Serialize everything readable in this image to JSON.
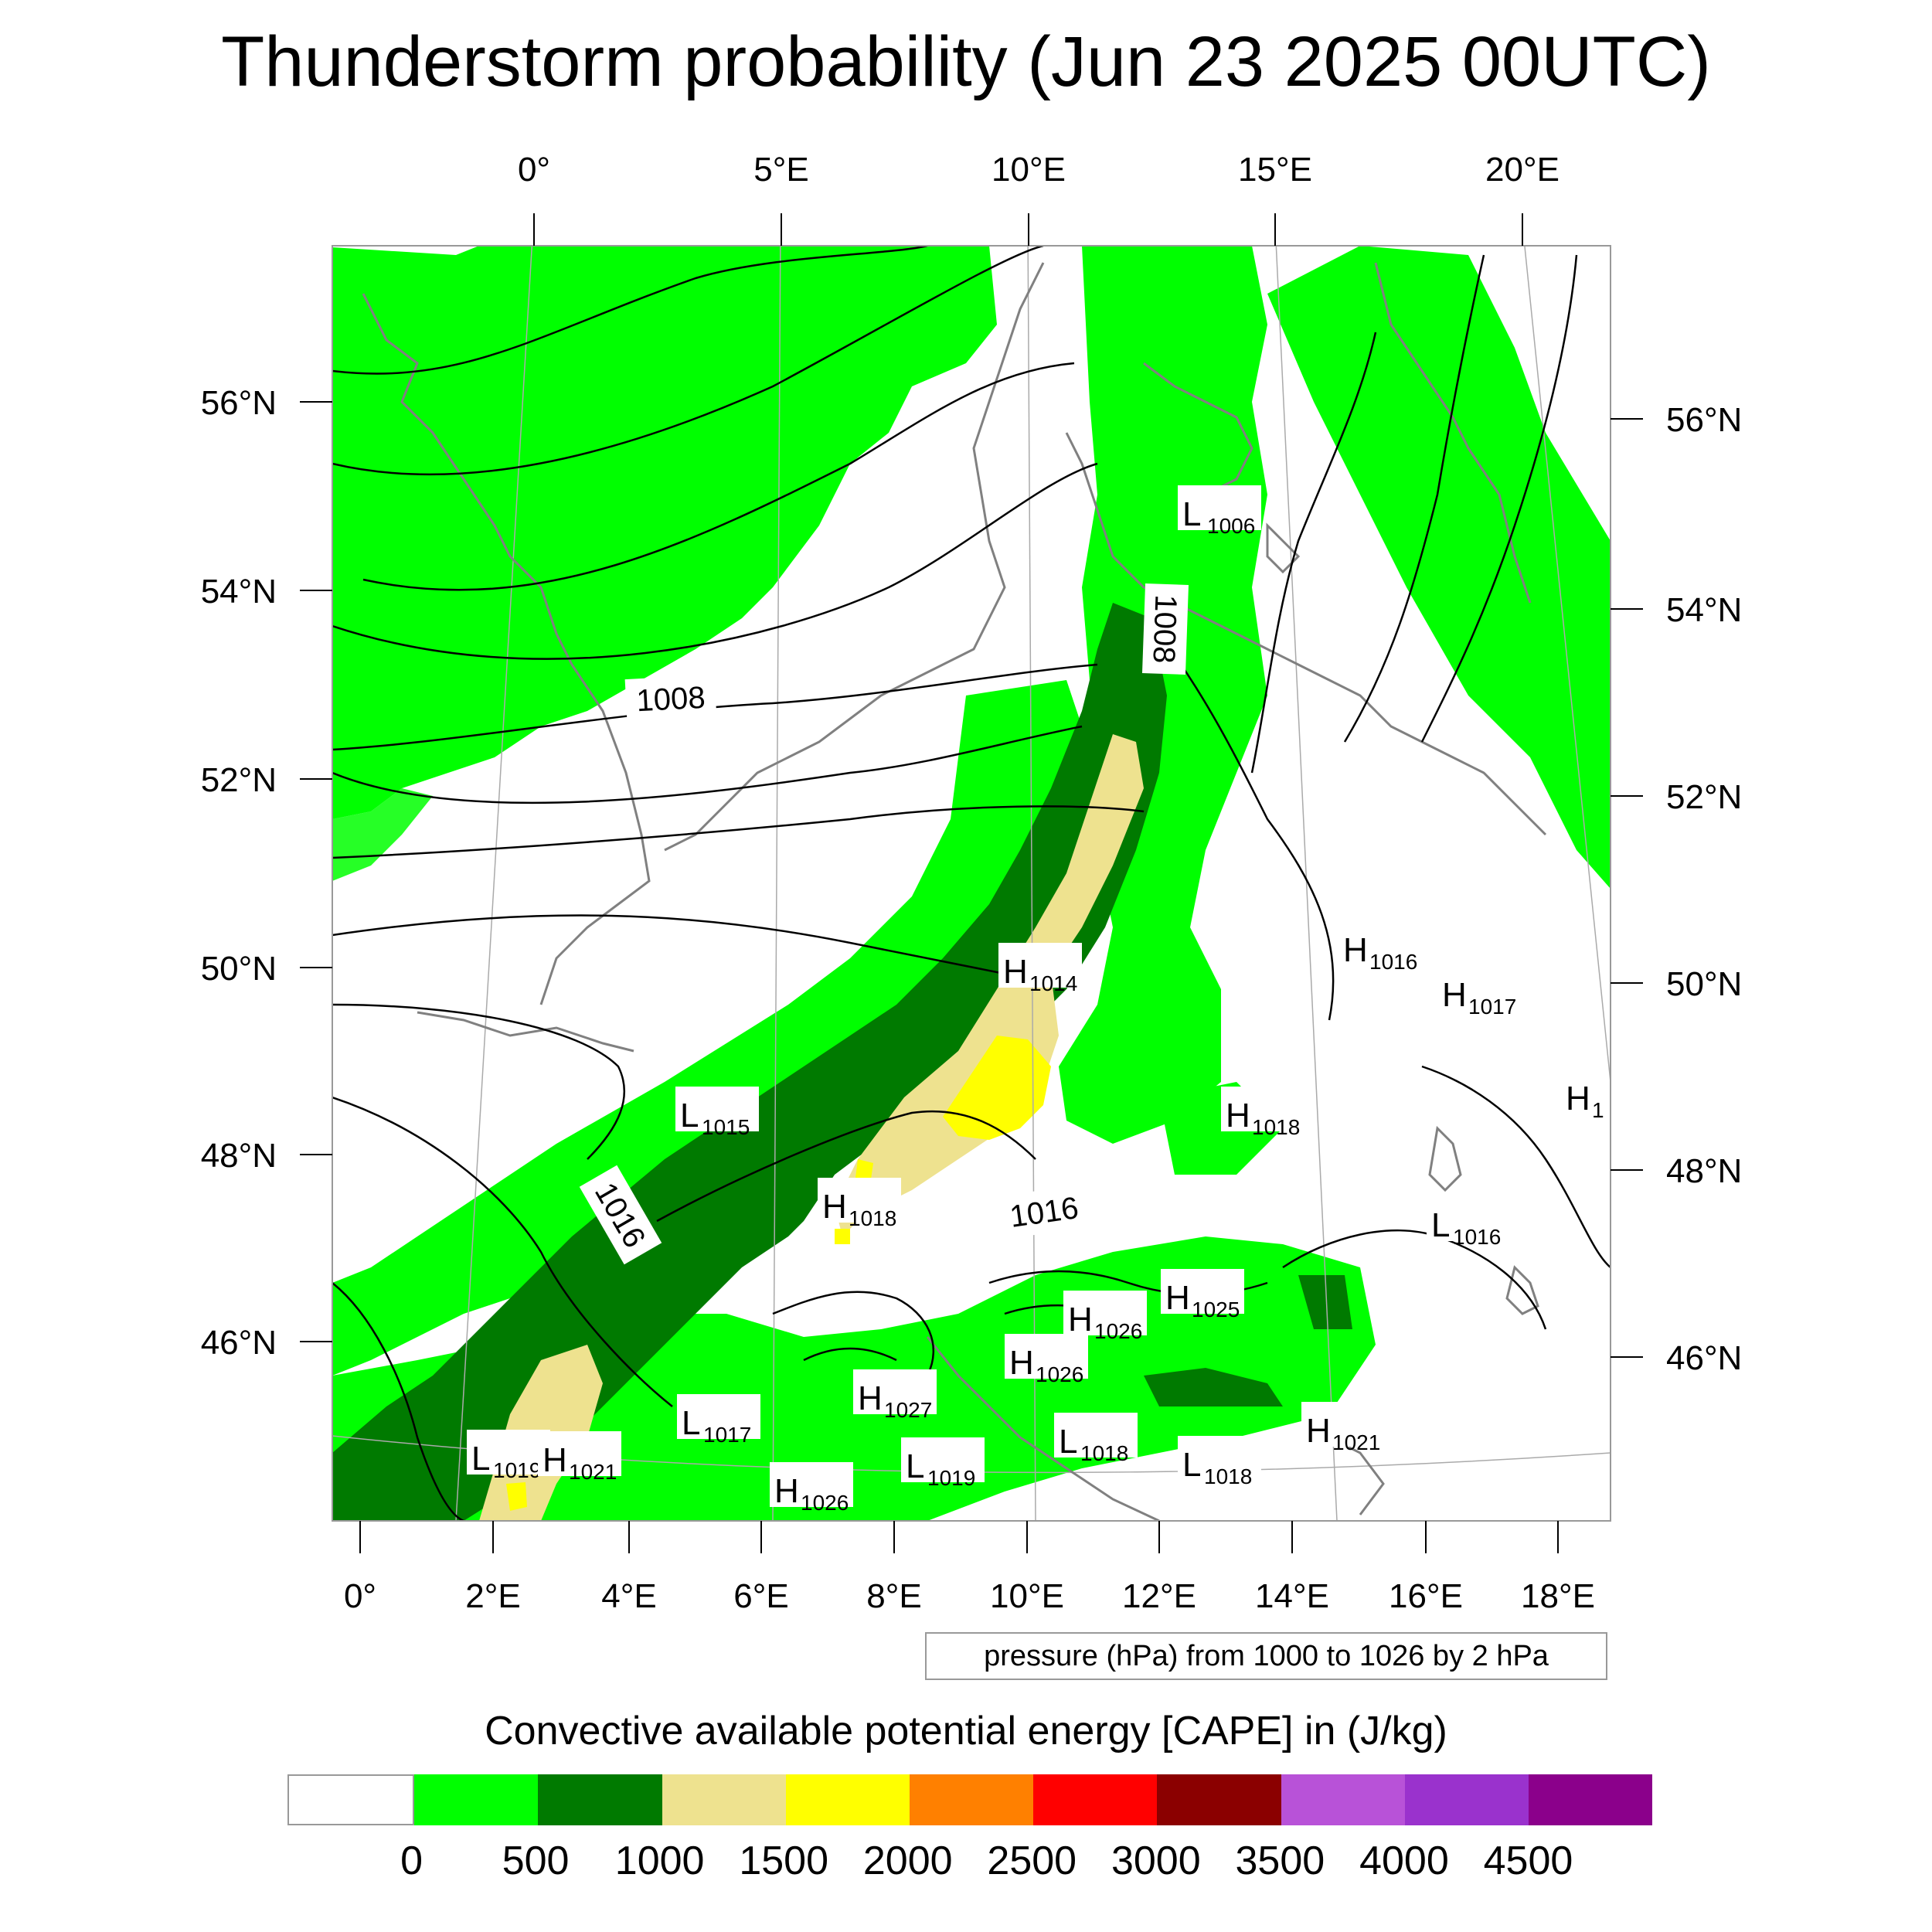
{
  "title": "Thunderstorm probability (Jun 23 2025 00UTC)",
  "top_lon_labels": [
    "0°",
    "5°E",
    "10°E",
    "15°E",
    "20°E"
  ],
  "bottom_lon_labels": [
    "0°",
    "2°E",
    "4°E",
    "6°E",
    "8°E",
    "10°E",
    "12°E",
    "14°E",
    "16°E",
    "18°E"
  ],
  "left_lat_labels": [
    "56°N",
    "54°N",
    "52°N",
    "50°N",
    "48°N",
    "46°N"
  ],
  "right_lat_labels": [
    "56°N",
    "54°N",
    "52°N",
    "50°N",
    "48°N",
    "46°N"
  ],
  "contour_labels": [
    "1008",
    "1008",
    "1016",
    "1016"
  ],
  "pressure_centres": [
    {
      "type": "L",
      "value": "1006"
    },
    {
      "type": "H",
      "value": "1014"
    },
    {
      "type": "H",
      "value": "1016"
    },
    {
      "type": "H",
      "value": "1017"
    },
    {
      "type": "H",
      "value": "1018"
    },
    {
      "type": "H",
      "value": "1018"
    },
    {
      "type": "L",
      "value": "1015"
    },
    {
      "type": "L",
      "value": "1016"
    },
    {
      "type": "H",
      "value": "1025"
    },
    {
      "type": "H",
      "value": "1026"
    },
    {
      "type": "H",
      "value": "1026"
    },
    {
      "type": "H",
      "value": "1027"
    },
    {
      "type": "L",
      "value": "1017"
    },
    {
      "type": "L",
      "value": "1019"
    },
    {
      "type": "H",
      "value": "1021"
    },
    {
      "type": "L",
      "value": "1019"
    },
    {
      "type": "H",
      "value": "1026"
    },
    {
      "type": "L",
      "value": "1018"
    },
    {
      "type": "L",
      "value": "1018"
    },
    {
      "type": "H",
      "value": "1021"
    },
    {
      "type": "H",
      "value": "1"
    }
  ],
  "pressure_note": "pressure (hPa) from 1000 to 1026 by 2 hPa",
  "colorbar": {
    "title": "Convective available potential energy [CAPE] in (J/kg)",
    "tick_labels": [
      "0",
      "500",
      "1000",
      "1500",
      "2000",
      "2500",
      "3000",
      "3500",
      "4000",
      "4500"
    ],
    "colors": [
      "#ffffff",
      "#00ff00",
      "#007a00",
      "#eee28f",
      "#ffff00",
      "#ff8000",
      "#ff0000",
      "#8b0000",
      "#b852d8",
      "#9a32cd",
      "#8b008b"
    ]
  },
  "colors": {
    "coast": "#808080",
    "isobar": "#000000",
    "graticule": "#aaaaaa",
    "frame": "#999999"
  }
}
